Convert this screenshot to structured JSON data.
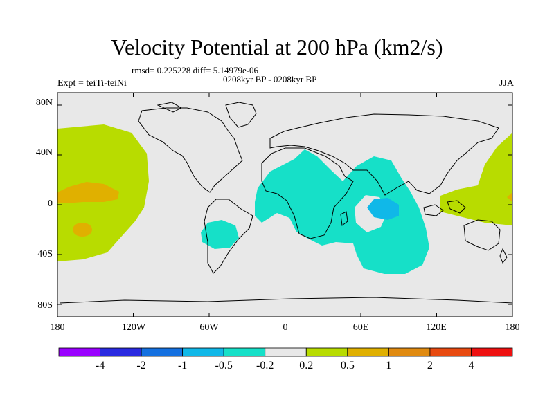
{
  "title": "Velocity Potential at 200 hPa (km2/s)",
  "stats": "rmsd= 0.225228 diff= 5.14979e-06",
  "period": "0208kyr BP - 0208kyr BP",
  "expt": "Expt = teiTi-teiNi",
  "season": "JJA",
  "lat_ticks": [
    "80N",
    "40N",
    "0",
    "40S",
    "80S"
  ],
  "lon_ticks": [
    "180",
    "120W",
    "60W",
    "0",
    "60E",
    "120E",
    "180"
  ],
  "colorbar": {
    "labels": [
      "-4",
      "-2",
      "-1",
      "-0.5",
      "-0.2",
      "0.2",
      "0.5",
      "1",
      "2",
      "4"
    ],
    "colors": [
      "#9a00ff",
      "#2a2ae0",
      "#1470e0",
      "#10b8e8",
      "#16e0c8",
      "#e8e8e8",
      "#b8dc00",
      "#e0b000",
      "#e08a10",
      "#e84a10",
      "#ee1010"
    ]
  },
  "map_colors": {
    "ocean": "#e8e8e8",
    "coast": "#000000",
    "positive_low": "#b8dc00",
    "positive_mid": "#e0b000",
    "negative_low": "#16e0c8",
    "negative_mid": "#10b8e8"
  }
}
